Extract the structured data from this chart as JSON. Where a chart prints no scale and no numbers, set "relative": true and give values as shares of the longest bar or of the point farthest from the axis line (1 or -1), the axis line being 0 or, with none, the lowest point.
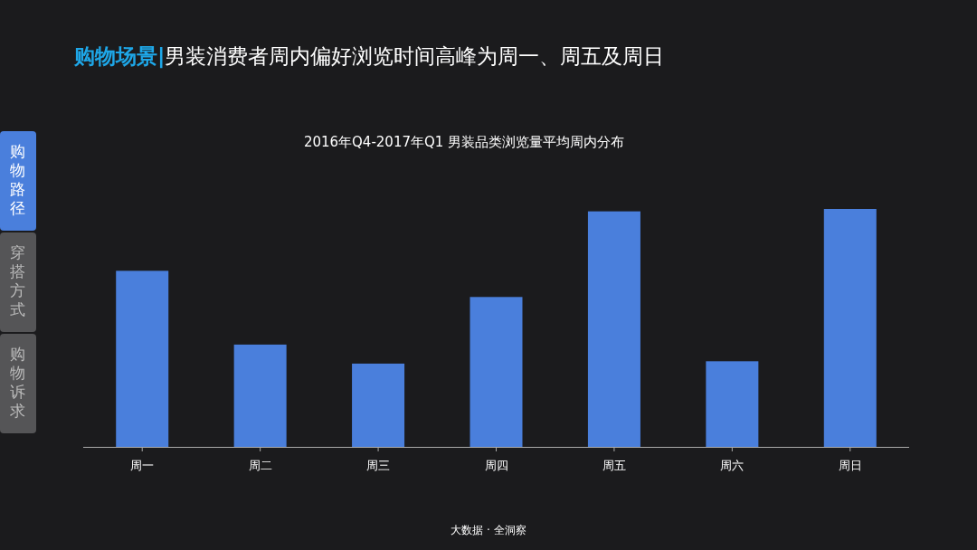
{
  "chart_data": {
    "type": "bar",
    "title": "购物场景|男装消费者周内偏好浏览时间高峰为周一、周五及周日",
    "subtitle": "2016年Q4-2017年Q1 男装品类浏览量平均周内分布",
    "annotations": [
      "购物路径",
      "穿搭方式",
      "购物诉求",
      "大数据 · 全洞察"
    ],
    "categories": [
      "周一",
      "周二",
      "周三",
      "周四",
      "周五",
      "周六",
      "周日"
    ],
    "values": [
      0.74,
      0.43,
      0.35,
      0.63,
      0.99,
      0.36,
      1
    ],
    "color": "#4a7fdc",
    "relative": true
  }
}
